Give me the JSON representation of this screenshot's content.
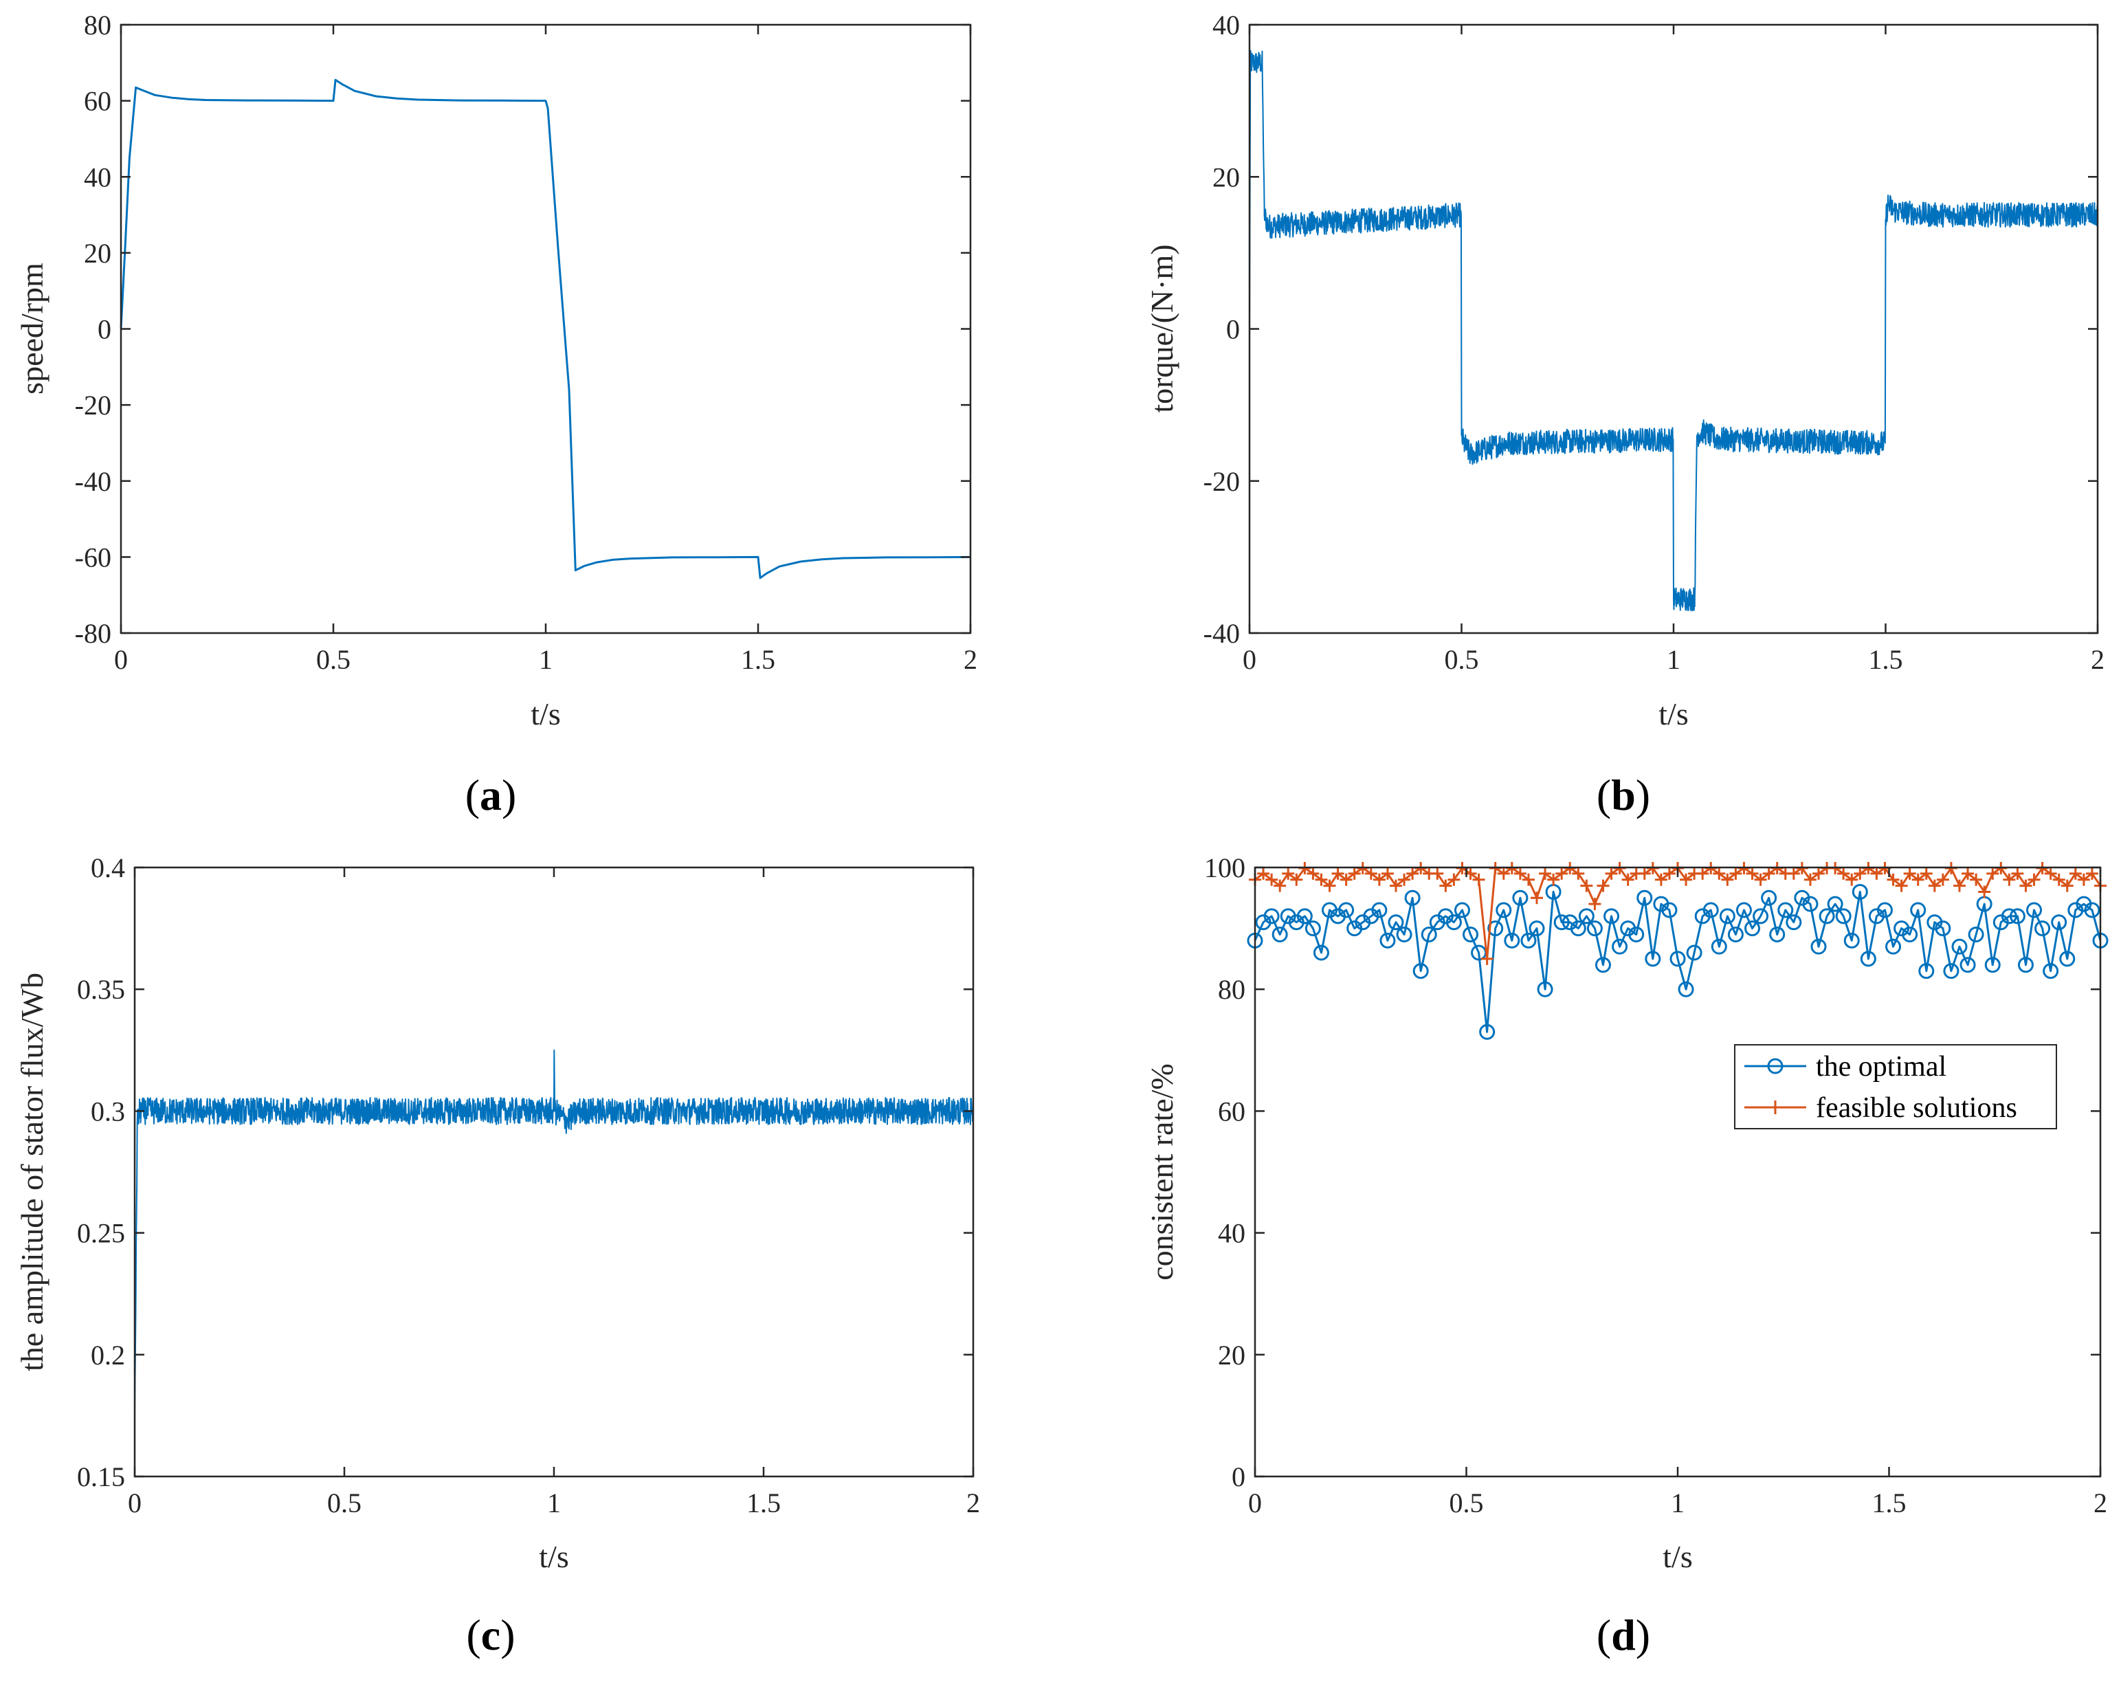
{
  "colors": {
    "series_blue": "#0072BD",
    "series_orange": "#D95319",
    "axes": "#262626",
    "background": "#ffffff"
  },
  "chart_data": [
    {
      "id": "a",
      "type": "line",
      "panel_label": {
        "open": "(",
        "letter": "a",
        "close": ")"
      },
      "xlabel": "t/s",
      "ylabel": "speed/rpm",
      "xlim": [
        0,
        2
      ],
      "ylim": [
        -80,
        80
      ],
      "xticks": [
        0,
        0.5,
        1,
        1.5,
        2
      ],
      "xtick_labels": [
        "0",
        "0.5",
        "1",
        "1.5",
        "2"
      ],
      "yticks": [
        -80,
        -60,
        -40,
        -20,
        0,
        20,
        40,
        60,
        80
      ],
      "ytick_labels": [
        "-80",
        "-60",
        "-40",
        "-20",
        "0",
        "20",
        "40",
        "60",
        "80"
      ],
      "noise": 0,
      "series": [
        {
          "name": "speed",
          "color": "#0072BD",
          "x": [
            0,
            0.01,
            0.02,
            0.035,
            0.05,
            0.08,
            0.12,
            0.16,
            0.2,
            0.3,
            0.4,
            0.499,
            0.5,
            0.505,
            0.52,
            0.55,
            0.6,
            0.65,
            0.7,
            0.8,
            0.9,
            1.0,
            1.005,
            1.03,
            1.055,
            1.07,
            1.09,
            1.12,
            1.16,
            1.2,
            1.3,
            1.4,
            1.499,
            1.5,
            1.505,
            1.52,
            1.55,
            1.6,
            1.65,
            1.7,
            1.8,
            1.9,
            2.0
          ],
          "y": [
            0,
            22,
            45,
            63.5,
            62.8,
            61.5,
            60.8,
            60.4,
            60.2,
            60.1,
            60.05,
            60,
            60,
            65.5,
            64.4,
            62.6,
            61.2,
            60.6,
            60.3,
            60.1,
            60.05,
            60,
            58,
            20,
            -16,
            -63.5,
            -62.4,
            -61.4,
            -60.7,
            -60.4,
            -60.1,
            -60.05,
            -60,
            -60,
            -65.5,
            -64.3,
            -62.5,
            -61.2,
            -60.6,
            -60.3,
            -60.1,
            -60.05,
            -60
          ]
        }
      ]
    },
    {
      "id": "b",
      "type": "line",
      "panel_label": {
        "open": "(",
        "letter": "b",
        "close": ")"
      },
      "xlabel": "t/s",
      "ylabel": "torque/(N·m)",
      "xlim": [
        0,
        2
      ],
      "ylim": [
        -40,
        40
      ],
      "xticks": [
        0,
        0.5,
        1,
        1.5,
        2
      ],
      "xtick_labels": [
        "0",
        "0.5",
        "1",
        "1.5",
        "2"
      ],
      "yticks": [
        -40,
        -20,
        0,
        20,
        40
      ],
      "ytick_labels": [
        "-40",
        "-20",
        "0",
        "20",
        "40"
      ],
      "noise": 1.6,
      "series": [
        {
          "name": "torque",
          "color": "#0072BD",
          "x": [
            0,
            0.002,
            0.03,
            0.035,
            0.045,
            0.499,
            0.5,
            0.505,
            0.52,
            0.6,
            0.999,
            1.0,
            1.05,
            1.055,
            1.07,
            1.1,
            1.499,
            1.5,
            1.505,
            1.52,
            1.6,
            2.0
          ],
          "y": [
            0,
            35,
            35,
            15,
            13.5,
            15,
            -14,
            -15,
            -16.5,
            -15,
            -14.5,
            -35.5,
            -35.5,
            -14,
            -13.5,
            -14.5,
            -15,
            14,
            16.5,
            15.5,
            15,
            15
          ]
        }
      ]
    },
    {
      "id": "c",
      "type": "line",
      "panel_label": {
        "open": "(",
        "letter": "c",
        "close": ")"
      },
      "xlabel": "t/s",
      "ylabel": "the amplitude of stator flux/Wb",
      "xlim": [
        0,
        2
      ],
      "ylim": [
        0.15,
        0.4
      ],
      "xticks": [
        0,
        0.5,
        1,
        1.5,
        2
      ],
      "xtick_labels": [
        "0",
        "0.5",
        "1",
        "1.5",
        "2"
      ],
      "yticks": [
        0.15,
        0.2,
        0.25,
        0.3,
        0.35,
        0.4
      ],
      "ytick_labels": [
        "0.15",
        "0.2",
        "0.25",
        "0.3",
        "0.35",
        "0.4"
      ],
      "noise": 0.0055,
      "series": [
        {
          "name": "stator flux amplitude",
          "color": "#0072BD",
          "x": [
            0,
            0.003,
            0.006,
            0.012,
            1.0,
            1.0005,
            1.002,
            1.03,
            1.06,
            2.0
          ],
          "y": [
            0.175,
            0.23,
            0.295,
            0.3,
            0.3,
            0.325,
            0.3,
            0.296,
            0.3,
            0.3
          ]
        }
      ]
    },
    {
      "id": "d",
      "type": "line",
      "panel_label": {
        "open": "(",
        "letter": "d",
        "close": ")"
      },
      "xlabel": "t/s",
      "ylabel": "consistent rate/%",
      "xlim": [
        0,
        2
      ],
      "ylim": [
        0,
        100
      ],
      "xticks": [
        0,
        0.5,
        1,
        1.5,
        2
      ],
      "xtick_labels": [
        "0",
        "0.5",
        "1",
        "1.5",
        "2"
      ],
      "yticks": [
        0,
        20,
        40,
        60,
        80,
        100
      ],
      "ytick_labels": [
        "0",
        "20",
        "40",
        "60",
        "80",
        "100"
      ],
      "legend_location": "center-right",
      "noise": 0,
      "series": [
        {
          "name": "the optimal",
          "color": "#0072BD",
          "marker": "circle",
          "y": [
            88,
            91,
            92,
            89,
            92,
            91,
            92,
            90,
            86,
            93,
            92,
            93,
            90,
            91,
            92,
            93,
            88,
            91,
            89,
            95,
            83,
            89,
            91,
            92,
            91,
            93,
            89,
            86,
            73,
            90,
            93,
            88,
            95,
            88,
            90,
            80,
            96,
            91,
            91,
            90,
            92,
            90,
            84,
            92,
            87,
            90,
            89,
            95,
            85,
            94,
            93,
            85,
            80,
            86,
            92,
            93,
            87,
            92,
            89,
            93,
            90,
            92,
            95,
            89,
            93,
            91,
            95,
            94,
            87,
            92,
            94,
            92,
            88,
            96,
            85,
            92,
            93,
            87,
            90,
            89,
            93,
            83,
            91,
            90,
            83,
            87,
            84,
            89,
            94,
            84,
            91,
            92,
            92,
            84,
            93,
            90,
            83,
            91,
            85,
            93,
            94,
            93,
            88
          ]
        },
        {
          "name": "feasible solutions",
          "color": "#D95319",
          "marker": "plus",
          "y": [
            98,
            99,
            98,
            97,
            99,
            98,
            100,
            99,
            98,
            97,
            99,
            98,
            99,
            100,
            99,
            98,
            99,
            97,
            98,
            99,
            100,
            99,
            99,
            97,
            98,
            100,
            99,
            98,
            85,
            100,
            99,
            100,
            99,
            98,
            95,
            99,
            98,
            99,
            100,
            99,
            97,
            94,
            97,
            99,
            100,
            98,
            99,
            99,
            100,
            98,
            99,
            100,
            98,
            99,
            99,
            100,
            99,
            98,
            99,
            100,
            99,
            98,
            99,
            100,
            99,
            99,
            100,
            98,
            99,
            100,
            100,
            99,
            98,
            99,
            100,
            99,
            100,
            98,
            97,
            99,
            98,
            99,
            97,
            98,
            100,
            97,
            99,
            98,
            96,
            99,
            100,
            98,
            99,
            97,
            98,
            100,
            99,
            98,
            97,
            99,
            98,
            99,
            97
          ]
        }
      ]
    }
  ]
}
